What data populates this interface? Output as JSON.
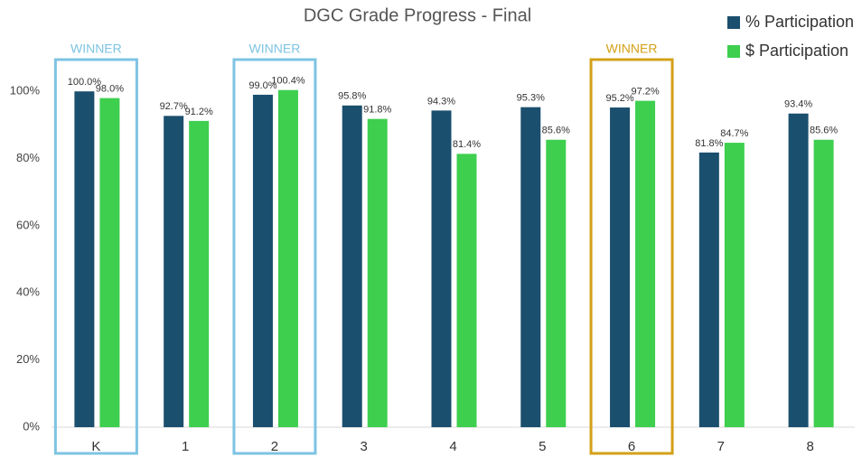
{
  "chart_data": {
    "type": "bar",
    "title": "DGC Grade Progress - Final",
    "categories": [
      "K",
      "1",
      "2",
      "3",
      "4",
      "5",
      "6",
      "7",
      "8"
    ],
    "series": [
      {
        "name": "% Participation",
        "color": "#1b4f6e",
        "values": [
          100.0,
          92.7,
          99.0,
          95.8,
          94.3,
          95.3,
          95.2,
          81.8,
          93.4
        ],
        "value_labels": [
          "100.0%",
          "92.7%",
          "99.0%",
          "95.8%",
          "94.3%",
          "95.3%",
          "95.2%",
          "81.8%",
          "93.4%"
        ]
      },
      {
        "name": "$ Participation",
        "color": "#3ecf4f",
        "values": [
          98.0,
          91.2,
          100.4,
          91.8,
          81.4,
          85.6,
          97.2,
          84.7,
          85.6
        ],
        "value_labels": [
          "98.0%",
          "91.2%",
          "100.4%",
          "91.8%",
          "81.4%",
          "85.6%",
          "97.2%",
          "84.7%",
          "85.6%"
        ]
      }
    ],
    "ylim": [
      0,
      110
    ],
    "yticks": [
      {
        "value": 0,
        "label": "0%"
      },
      {
        "value": 20,
        "label": "20%"
      },
      {
        "value": 40,
        "label": "40%"
      },
      {
        "value": 60,
        "label": "60%"
      },
      {
        "value": 80,
        "label": "80%"
      },
      {
        "value": 100,
        "label": "100%"
      }
    ],
    "grid": false,
    "legend": "top-right",
    "annotations": [
      {
        "text": "WINNER",
        "category": "K",
        "color": "#7ec3e3"
      },
      {
        "text": "WINNER",
        "category": "2",
        "color": "#7ec3e3"
      },
      {
        "text": "WINNER",
        "category": "6",
        "color": "#d4a017"
      }
    ]
  }
}
